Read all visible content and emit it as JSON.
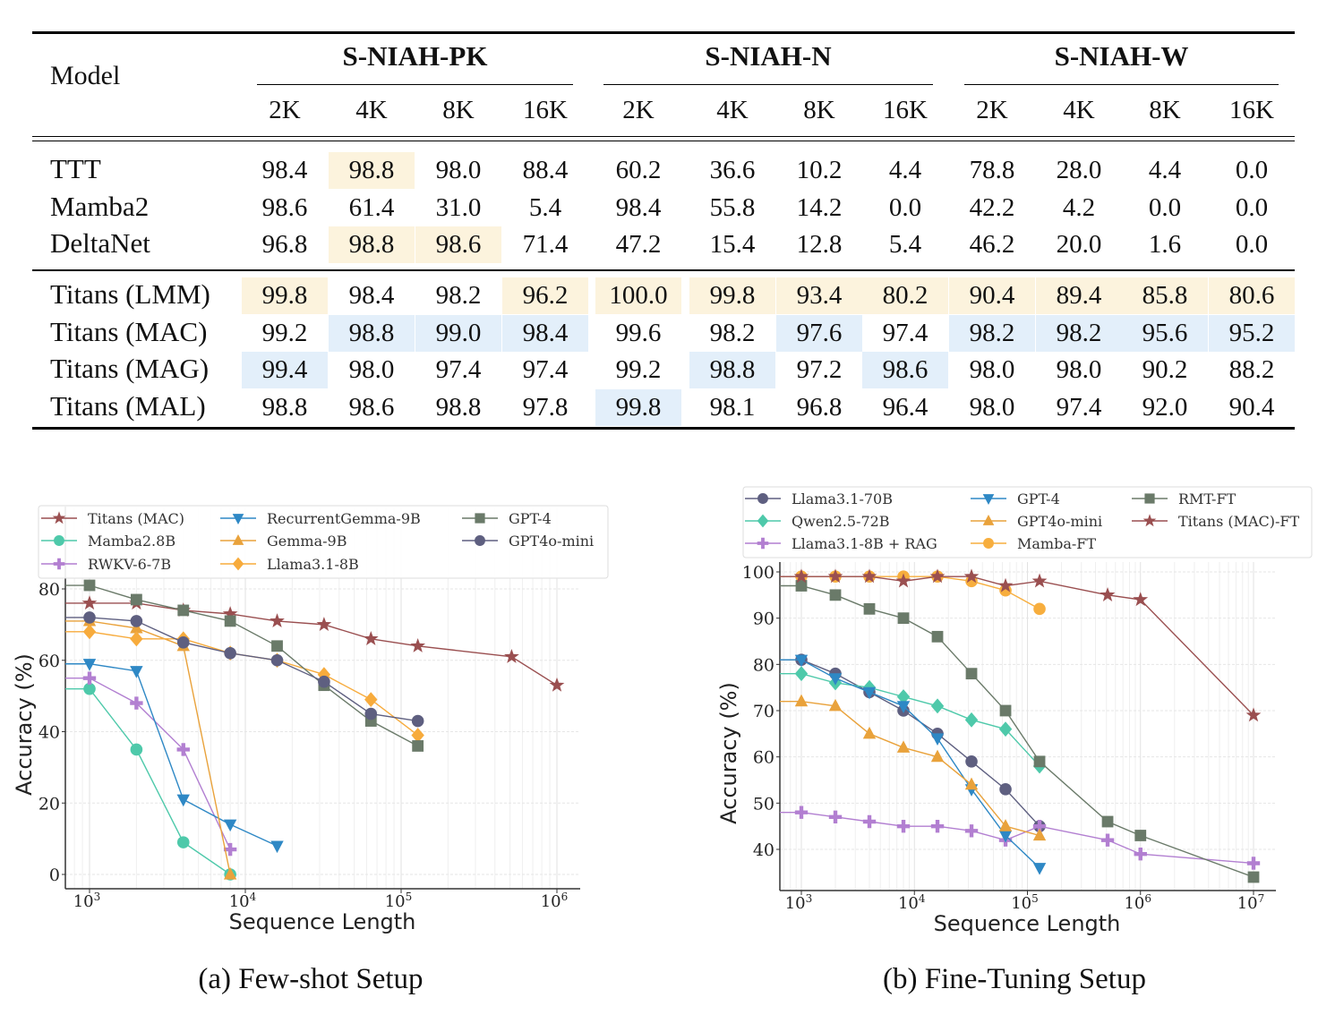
{
  "table": {
    "model_header": "Model",
    "groups": [
      "S-NIAH-PK",
      "S-NIAH-N",
      "S-NIAH-W"
    ],
    "lengths": [
      "2K",
      "4K",
      "8K",
      "16K"
    ],
    "rows": [
      {
        "model": "TTT",
        "values": [
          "98.4",
          "98.8",
          "98.0",
          "88.4",
          "60.2",
          "36.6",
          "10.2",
          "4.4",
          "78.8",
          "28.0",
          "4.4",
          "0.0"
        ],
        "highlight": [
          "",
          "y",
          "",
          "",
          "",
          "",
          "",
          "",
          "",
          "",
          "",
          ""
        ]
      },
      {
        "model": "Mamba2",
        "values": [
          "98.6",
          "61.4",
          "31.0",
          "5.4",
          "98.4",
          "55.8",
          "14.2",
          "0.0",
          "42.2",
          "4.2",
          "0.0",
          "0.0"
        ],
        "highlight": [
          "",
          "",
          "",
          "",
          "",
          "",
          "",
          "",
          "",
          "",
          "",
          ""
        ]
      },
      {
        "model": "DeltaNet",
        "values": [
          "96.8",
          "98.8",
          "98.6",
          "71.4",
          "47.2",
          "15.4",
          "12.8",
          "5.4",
          "46.2",
          "20.0",
          "1.6",
          "0.0"
        ],
        "highlight": [
          "",
          "y",
          "y",
          "",
          "",
          "",
          "",
          "",
          "",
          "",
          "",
          ""
        ]
      },
      {
        "model": "Titans (LMM)",
        "values": [
          "99.8",
          "98.4",
          "98.2",
          "96.2",
          "100.0",
          "99.8",
          "93.4",
          "80.2",
          "90.4",
          "89.4",
          "85.8",
          "80.6"
        ],
        "highlight": [
          "y",
          "",
          "",
          "y",
          "y",
          "y",
          "y",
          "y",
          "y",
          "y",
          "y",
          "y"
        ]
      },
      {
        "model": "Titans (MAC)",
        "values": [
          "99.2",
          "98.8",
          "99.0",
          "98.4",
          "99.6",
          "98.2",
          "97.6",
          "97.4",
          "98.2",
          "98.2",
          "95.6",
          "95.2"
        ],
        "highlight": [
          "",
          "b",
          "b",
          "b",
          "",
          "",
          "b",
          "",
          "b",
          "b",
          "b",
          "b"
        ]
      },
      {
        "model": "Titans (MAG)",
        "values": [
          "99.4",
          "98.0",
          "97.4",
          "97.4",
          "99.2",
          "98.8",
          "97.2",
          "98.6",
          "98.0",
          "98.0",
          "90.2",
          "88.2"
        ],
        "highlight": [
          "b",
          "",
          "",
          "",
          "",
          "b",
          "",
          "b",
          "",
          "",
          "",
          ""
        ]
      },
      {
        "model": "Titans (MAL)",
        "values": [
          "98.8",
          "98.6",
          "98.8",
          "97.8",
          "99.8",
          "98.1",
          "96.8",
          "96.4",
          "98.0",
          "97.4",
          "92.0",
          "90.4"
        ],
        "highlight": [
          "",
          "",
          "",
          "",
          "b",
          "",
          "",
          "",
          "",
          "",
          "",
          ""
        ]
      }
    ],
    "highlight_colors": {
      "y": "#fcf3dd",
      "b": "#e3effa"
    }
  },
  "captions": [
    "(a) Few-shot Setup",
    "(b) Fine-Tuning Setup"
  ],
  "chart_data": [
    {
      "type": "line",
      "xlabel": "Sequence Length",
      "ylabel": "Accuracy (%)",
      "xscale": "log",
      "xlim": [
        700,
        1500000
      ],
      "ylim": [
        -4,
        82
      ],
      "x_ticks": [
        1000,
        10000,
        100000,
        1000000
      ],
      "y_ticks": [
        0,
        20,
        40,
        60,
        80
      ],
      "grid": true,
      "legend": "top",
      "series": [
        {
          "name": "Titans (MAC)",
          "marker": "star",
          "color": "#9a4f50",
          "x": [
            1000,
            2000,
            4000,
            8000,
            16000,
            32000,
            64000,
            128000,
            512000,
            1000000
          ],
          "y": [
            76,
            76,
            74,
            73,
            71,
            70,
            66,
            64,
            61,
            53
          ]
        },
        {
          "name": "Mamba2.8B",
          "marker": "circle",
          "color": "#4ec9aa",
          "x": [
            1000,
            2000,
            4000,
            8000
          ],
          "y": [
            52,
            35,
            9,
            0
          ]
        },
        {
          "name": "RWKV-6-7B",
          "marker": "plus",
          "color": "#b27fd1",
          "x": [
            1000,
            2000,
            4000,
            8000
          ],
          "y": [
            55,
            48,
            35,
            7
          ]
        },
        {
          "name": "RecurrentGemma-9B",
          "marker": "tri-down",
          "color": "#2e88c5",
          "x": [
            1000,
            2000,
            4000,
            8000,
            16000
          ],
          "y": [
            59,
            57,
            21,
            14,
            8
          ]
        },
        {
          "name": "Gemma-9B",
          "marker": "tri-up",
          "color": "#e9a23b",
          "x": [
            1000,
            2000,
            4000,
            8000
          ],
          "y": [
            71,
            69,
            64,
            0
          ]
        },
        {
          "name": "Llama3.1-8B",
          "marker": "diamond",
          "color": "#f7ab3c",
          "x": [
            1000,
            2000,
            4000,
            8000,
            16000,
            32000,
            64000,
            128000
          ],
          "y": [
            68,
            66,
            66,
            62,
            60,
            56,
            49,
            39
          ]
        },
        {
          "name": "GPT-4",
          "marker": "square",
          "color": "#6a7a69",
          "x": [
            1000,
            2000,
            4000,
            8000,
            16000,
            32000,
            64000,
            128000
          ],
          "y": [
            81,
            77,
            74,
            71,
            64,
            53,
            43,
            36
          ]
        },
        {
          "name": "GPT4o-mini",
          "marker": "circle",
          "color": "#5e5f80",
          "x": [
            1000,
            2000,
            4000,
            8000,
            16000,
            32000,
            64000,
            128000
          ],
          "y": [
            72,
            71,
            65,
            62,
            60,
            54,
            45,
            43
          ]
        }
      ]
    },
    {
      "type": "line",
      "xlabel": "Sequence Length",
      "ylabel": "Accuracy (%)",
      "xscale": "log",
      "xlim": [
        700,
        13000000
      ],
      "ylim": [
        33,
        101
      ],
      "x_ticks": [
        1000,
        10000,
        100000,
        1000000,
        10000000
      ],
      "y_ticks": [
        40,
        50,
        60,
        70,
        80,
        90,
        100
      ],
      "grid": true,
      "legend": "top",
      "series": [
        {
          "name": "Llama3.1-70B",
          "marker": "circle",
          "color": "#5e5f80",
          "x": [
            1000,
            2000,
            4000,
            8000,
            16000,
            32000,
            64000,
            128000
          ],
          "y": [
            81,
            78,
            74,
            70,
            65,
            59,
            53,
            45
          ]
        },
        {
          "name": "Qwen2.5-72B",
          "marker": "diamond",
          "color": "#4ec9aa",
          "x": [
            1000,
            2000,
            4000,
            8000,
            16000,
            32000,
            64000,
            128000
          ],
          "y": [
            78,
            76,
            75,
            73,
            71,
            68,
            66,
            58
          ]
        },
        {
          "name": "Llama3.1-8B + RAG",
          "marker": "plus",
          "color": "#b27fd1",
          "x": [
            1000,
            2000,
            4000,
            8000,
            16000,
            32000,
            64000,
            128000,
            512000,
            1000000,
            10000000
          ],
          "y": [
            48,
            47,
            46,
            45,
            45,
            44,
            42,
            45,
            42,
            39,
            37
          ]
        },
        {
          "name": "GPT-4",
          "marker": "tri-down",
          "color": "#2e88c5",
          "x": [
            1000,
            2000,
            4000,
            8000,
            16000,
            32000,
            64000,
            128000
          ],
          "y": [
            81,
            77,
            74,
            71,
            64,
            53,
            43,
            36
          ]
        },
        {
          "name": "GPT4o-mini",
          "marker": "tri-up",
          "color": "#e9a23b",
          "x": [
            1000,
            2000,
            4000,
            8000,
            16000,
            32000,
            64000,
            128000
          ],
          "y": [
            72,
            71,
            65,
            62,
            60,
            54,
            45,
            43
          ]
        },
        {
          "name": "Mamba-FT",
          "marker": "circle",
          "color": "#f7ae3e",
          "x": [
            1000,
            2000,
            4000,
            8000,
            16000,
            32000,
            64000,
            128000
          ],
          "y": [
            99,
            99,
            99,
            99,
            99,
            98,
            96,
            92
          ]
        },
        {
          "name": "RMT-FT",
          "marker": "square",
          "color": "#6a7a69",
          "x": [
            1000,
            2000,
            4000,
            8000,
            16000,
            32000,
            64000,
            128000,
            512000,
            1000000,
            10000000
          ],
          "y": [
            97,
            95,
            92,
            90,
            86,
            78,
            70,
            59,
            46,
            43,
            34
          ]
        },
        {
          "name": "Titans (MAC)-FT",
          "marker": "star",
          "color": "#9a4f50",
          "x": [
            1000,
            2000,
            4000,
            8000,
            16000,
            32000,
            64000,
            128000,
            512000,
            1000000,
            10000000
          ],
          "y": [
            99,
            99,
            99,
            98,
            99,
            99,
            97,
            98,
            95,
            94,
            69
          ]
        }
      ]
    }
  ]
}
